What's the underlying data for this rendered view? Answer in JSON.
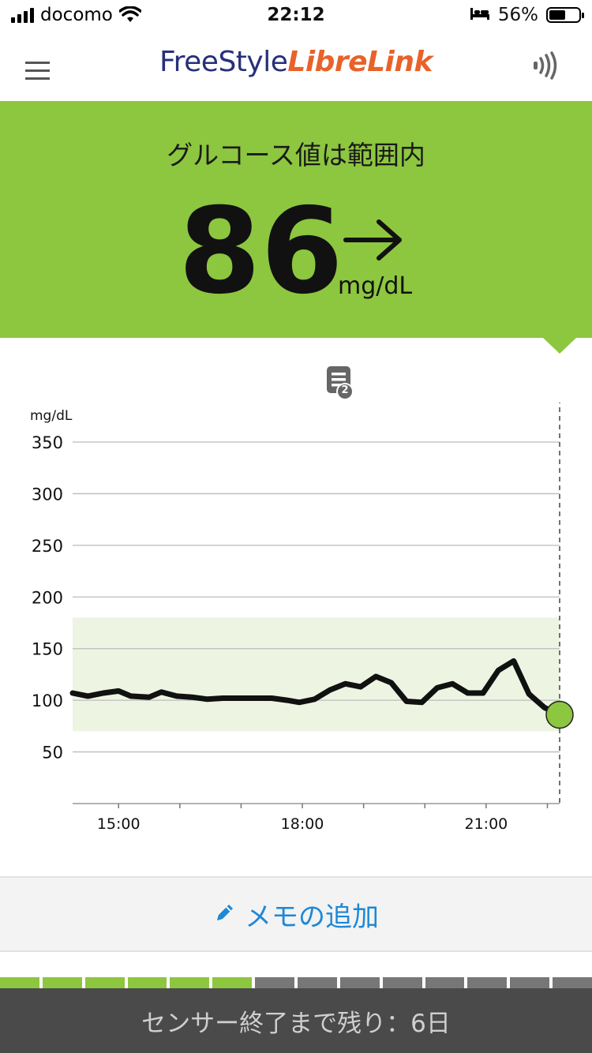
{
  "status_bar": {
    "carrier": "docomo",
    "time": "22:12",
    "battery_percent": "56%",
    "battery_level": 0.56
  },
  "header": {
    "brand_part1": "FreeStyle",
    "brand_part2": "LibreLink"
  },
  "reading": {
    "status_text": "グルコース値は範囲内",
    "value": "86",
    "unit": "mg/dL",
    "trend": "steady-right-arrow"
  },
  "note_badge": {
    "count": "2"
  },
  "chart_data": {
    "type": "line",
    "ylabel": "mg/dL",
    "ylim": [
      0,
      350
    ],
    "yticks": [
      "350",
      "300",
      "250",
      "200",
      "150",
      "100",
      "50"
    ],
    "ytick_values": [
      350,
      300,
      250,
      200,
      150,
      100,
      50
    ],
    "xlabels": [
      "15:00",
      "18:00",
      "21:00"
    ],
    "xlabel_values": [
      15,
      18,
      21
    ],
    "xlim": [
      14.25,
      22.2
    ],
    "target_range": [
      70,
      180
    ],
    "series": [
      {
        "points": [
          [
            14.25,
            107
          ],
          [
            14.5,
            104
          ],
          [
            14.75,
            107
          ],
          [
            15.0,
            109
          ],
          [
            15.2,
            104
          ],
          [
            15.5,
            103
          ],
          [
            15.7,
            108
          ],
          [
            15.95,
            104
          ],
          [
            16.2,
            103
          ],
          [
            16.45,
            101
          ],
          [
            16.7,
            102
          ],
          [
            17.0,
            102
          ],
          [
            17.25,
            102
          ],
          [
            17.5,
            102
          ],
          [
            17.75,
            100
          ],
          [
            17.95,
            98
          ],
          [
            18.2,
            101
          ],
          [
            18.45,
            110
          ],
          [
            18.7,
            116
          ],
          [
            18.95,
            113
          ],
          [
            19.2,
            123
          ],
          [
            19.45,
            117
          ],
          [
            19.7,
            99
          ],
          [
            19.95,
            98
          ],
          [
            20.2,
            112
          ],
          [
            20.45,
            116
          ],
          [
            20.7,
            107
          ],
          [
            20.95,
            107
          ],
          [
            21.2,
            129
          ],
          [
            21.45,
            138
          ],
          [
            21.7,
            106
          ],
          [
            21.95,
            93
          ],
          [
            22.2,
            86
          ]
        ]
      }
    ],
    "current_value": 86,
    "colors": {
      "line": "#111111",
      "target_fill": "#edf5e2",
      "current_dot": "#8dc63f"
    }
  },
  "memo_button": {
    "label": "メモの追加"
  },
  "sensor": {
    "remaining_text": "センサー終了まで残り：6日",
    "segments_total": 14,
    "segments_elapsed": 6,
    "colors": {
      "elapsed": "#8dc63f",
      "remaining": "#777777"
    }
  },
  "colors": {
    "accent_green": "#8dc63f",
    "memo_blue": "#1e88d6",
    "brand_blue": "#27307a",
    "brand_orange": "#e8622a"
  }
}
